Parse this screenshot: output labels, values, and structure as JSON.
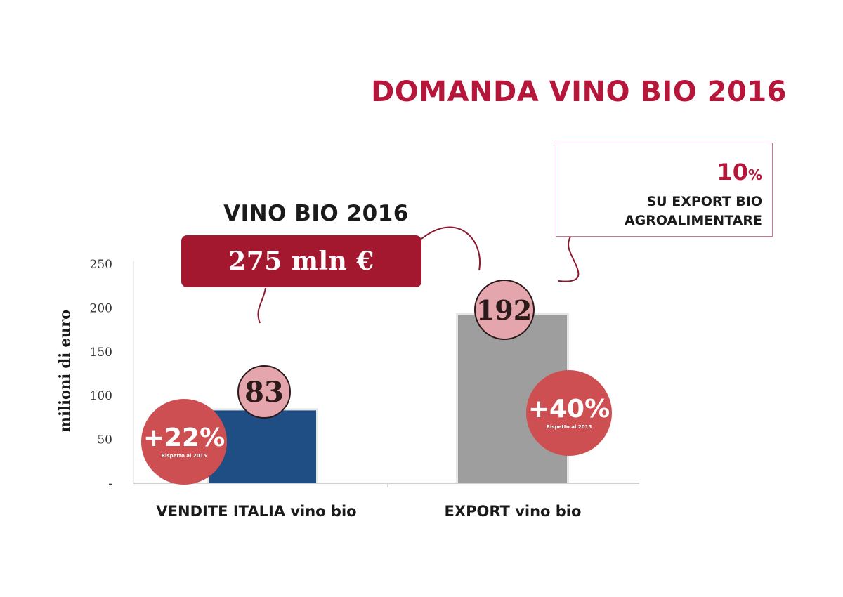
{
  "chart_data": {
    "type": "bar",
    "title": "DOMANDA VINO BIO 2016",
    "ylabel": "milioni di euro",
    "ylim": [
      0,
      250
    ],
    "y_ticks": [
      "-",
      "50",
      "100",
      "150",
      "200",
      "250"
    ],
    "categories": [
      "VENDITE ITALIA vino bio",
      "EXPORT vino bio"
    ],
    "values": [
      83,
      192
    ],
    "value_labels": [
      "83",
      "192"
    ],
    "bar_colors": [
      "#1f4e85",
      "#9e9e9e"
    ],
    "growth_labels": [
      "+22%",
      "+40%"
    ],
    "growth_note": "Rispetto al 2015",
    "grid": false
  },
  "total": {
    "title": "VINO BIO 2016",
    "value": "275 mln €"
  },
  "export_share": {
    "value": "10",
    "unit": "%",
    "line1": "SU EXPORT BIO",
    "line2": "AGROALIMENTARE"
  },
  "colors": {
    "accent": "#b5163a",
    "total_box": "#a4182f",
    "bubble_value": "#e4a5ad",
    "bubble_growth": "#cd4f52"
  }
}
